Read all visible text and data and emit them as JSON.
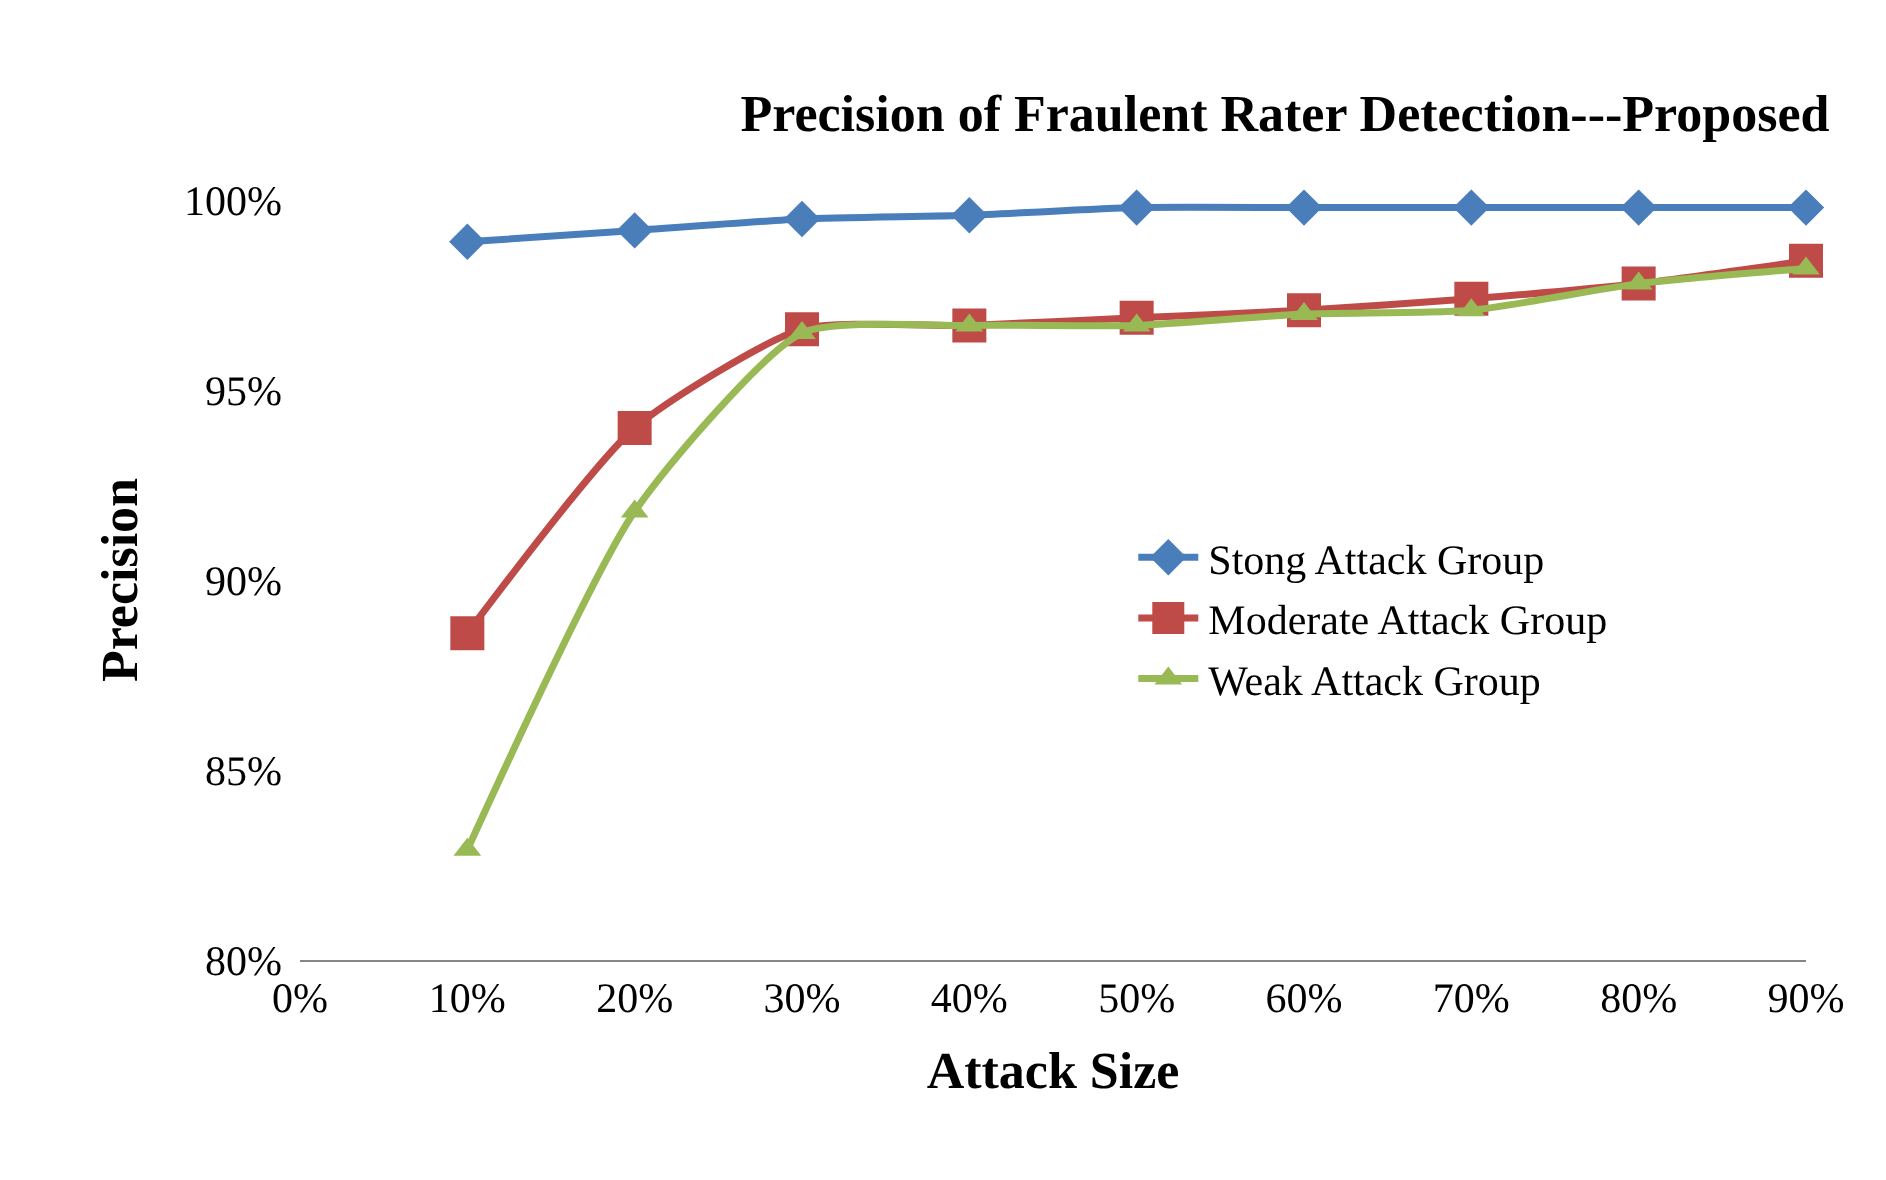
{
  "chart_data": {
    "type": "line",
    "title": "Precision of Fraulent Rater Detection---Proposed",
    "xlabel": "Attack Size",
    "ylabel": "Precision",
    "x": [
      10,
      20,
      30,
      40,
      50,
      60,
      70,
      80,
      90
    ],
    "series": [
      {
        "name": "Stong Attack Group",
        "color": "#4a7ebb",
        "marker": "diamond",
        "values": [
          98.9,
          99.2,
          99.5,
          99.6,
          99.8,
          99.8,
          99.8,
          99.8,
          99.8
        ]
      },
      {
        "name": "Moderate Attack Group",
        "color": "#be4b48",
        "marker": "square",
        "values": [
          88.6,
          94.0,
          96.6,
          96.7,
          96.9,
          97.1,
          97.4,
          97.8,
          98.4
        ]
      },
      {
        "name": "Weak Attack Group",
        "color": "#98b954",
        "marker": "triangle",
        "values": [
          82.9,
          91.8,
          96.5,
          96.7,
          96.7,
          97.0,
          97.1,
          97.8,
          98.2
        ]
      }
    ],
    "xlim": [
      0,
      90
    ],
    "xticks": [
      {
        "value": 0,
        "label": "0%"
      },
      {
        "value": 10,
        "label": "10%"
      },
      {
        "value": 20,
        "label": "20%"
      },
      {
        "value": 30,
        "label": "30%"
      },
      {
        "value": 40,
        "label": "40%"
      },
      {
        "value": 50,
        "label": "50%"
      },
      {
        "value": 60,
        "label": "60%"
      },
      {
        "value": 70,
        "label": "70%"
      },
      {
        "value": 80,
        "label": "80%"
      },
      {
        "value": 90,
        "label": "90%"
      }
    ],
    "ylim": [
      80,
      100
    ],
    "yticks": [
      {
        "value": 80,
        "label": "80%"
      },
      {
        "value": 85,
        "label": "85%"
      },
      {
        "value": 90,
        "label": "90%"
      },
      {
        "value": 95,
        "label": "95%"
      },
      {
        "value": 100,
        "label": "100%"
      }
    ],
    "legend": "right",
    "line_style": "solid"
  }
}
